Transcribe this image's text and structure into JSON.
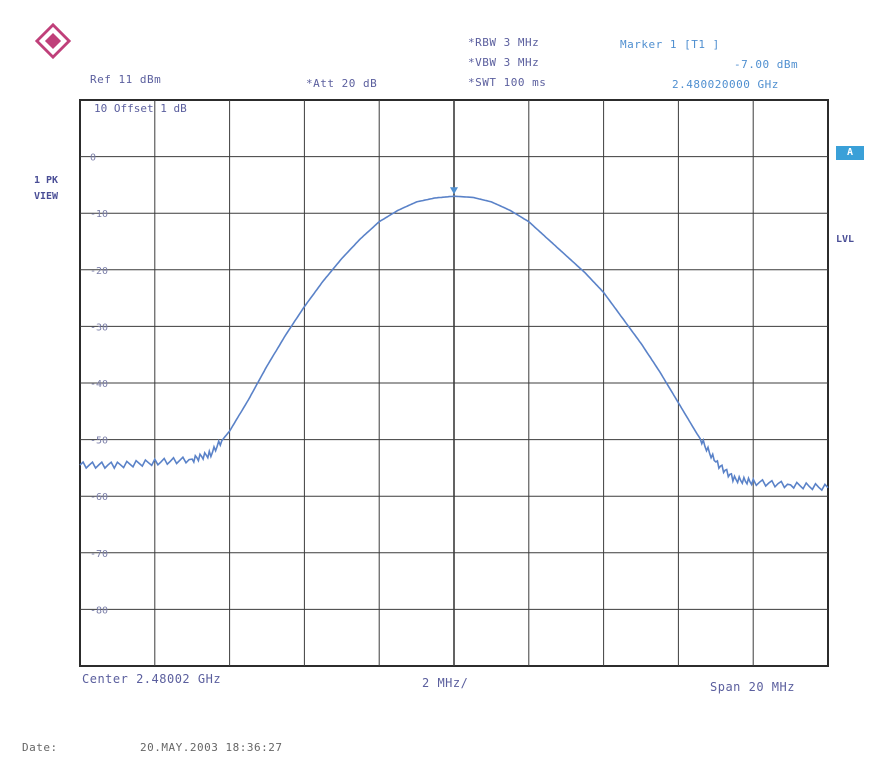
{
  "header": {
    "ref_label": "Ref  11 dBm",
    "att_label": "*Att  20 dB",
    "rbw_label": "*RBW 3 MHz",
    "vbw_label": "*VBW 3 MHz",
    "swt_label": "*SWT 100 ms",
    "marker_title": "Marker 1 [T1 ]",
    "marker_level": "-7.00 dBm",
    "marker_freq": "2.480020000 GHz",
    "offset_label": "10  Offset  1 dB"
  },
  "side": {
    "trace_mode_line1": "1 PK",
    "trace_mode_line2": "VIEW",
    "badge": "A",
    "lvl": "LVL"
  },
  "footer": {
    "center": "Center 2.48002 GHz",
    "per_div": "2 MHz/",
    "span": "Span 20 MHz",
    "date_label": "Date:",
    "date_value": "20.MAY.2003  18:36:27"
  },
  "colors": {
    "trace": "#5a82c8",
    "grid": "#3c3c3c",
    "frame": "#2c2c2c",
    "logo": "#c0407a"
  },
  "icon": "rohde-schwarz-logo",
  "chart_data": {
    "type": "line",
    "title": "",
    "xlabel": "",
    "ylabel": "",
    "x_center_ghz": 2.48002,
    "x_span_mhz": 20,
    "x_per_div_mhz": 2,
    "xlim_mhz_offset": [
      -10,
      10
    ],
    "ylim": [
      -90,
      10
    ],
    "y_ticks": [
      {
        "value": 0,
        "label": "0"
      },
      {
        "value": -10,
        "label": "-10"
      },
      {
        "value": -20,
        "label": "-20"
      },
      {
        "value": -30,
        "label": "-30"
      },
      {
        "value": -40,
        "label": "-40"
      },
      {
        "value": -50,
        "label": "-50"
      },
      {
        "value": -60,
        "label": "-60"
      },
      {
        "value": -70,
        "label": "-70"
      },
      {
        "value": -80,
        "label": "-80"
      }
    ],
    "grid": true,
    "marker": {
      "x_mhz_offset": 0,
      "y": -7.0
    },
    "series": [
      {
        "values_x_mhz_offset": [
          -10,
          -9,
          -8,
          -7,
          -6.5,
          -6,
          -5.5,
          -5,
          -4.5,
          -4,
          -3.5,
          -3,
          -2.5,
          -2,
          -1.5,
          -1,
          -0.5,
          0,
          0.5,
          1,
          1.5,
          2,
          2.5,
          3,
          3.5,
          4,
          4.5,
          5,
          5.5,
          6,
          6.5,
          7,
          7.5,
          8,
          9,
          10
        ],
        "values_y": [
          -54.5,
          -54.5,
          -54,
          -53.5,
          -52.5,
          -48.5,
          -43,
          -37,
          -31.5,
          -26.5,
          -22,
          -18,
          -14.5,
          -11.5,
          -9.5,
          -8,
          -7.3,
          -7.0,
          -7.2,
          -8,
          -9.5,
          -11.5,
          -14.5,
          -17.5,
          -20.5,
          -24,
          -28.5,
          -33,
          -38,
          -43.5,
          -49,
          -54,
          -57,
          -57.5,
          -58,
          -58.5
        ]
      }
    ]
  }
}
